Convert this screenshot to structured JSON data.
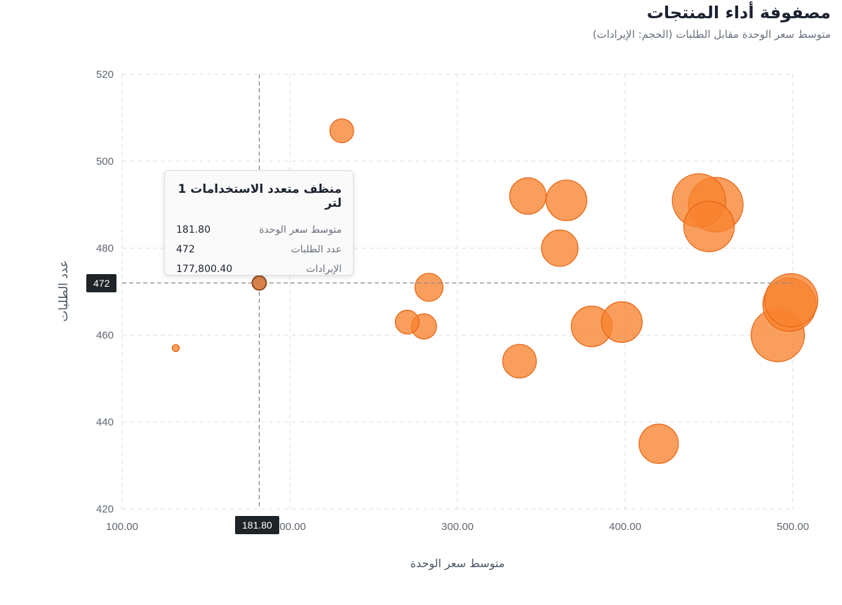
{
  "header": {
    "title": "مصفوفة أداء المنتجات",
    "subtitle": "متوسط سعر الوحدة مقابل الطلبات (الحجم: الإيرادات)"
  },
  "colors": {
    "bubble_fill": "#f7832f",
    "bubble_stroke": "#e8620f",
    "grid": "#e3e3e3",
    "crosshair": "#888888",
    "chip_bg": "#1e2428"
  },
  "chart_data": {
    "type": "scatter",
    "title": "مصفوفة أداء المنتجات",
    "subtitle": "متوسط سعر الوحدة مقابل الطلبات (الحجم: الإيرادات)",
    "xlabel": "متوسط سعر الوحدة",
    "ylabel": "عدد الطلبات",
    "xlim": [
      100,
      500
    ],
    "ylim": [
      420,
      520
    ],
    "xticks": [
      "100.00",
      "200.00",
      "300.00",
      "400.00",
      "500.00"
    ],
    "yticks": [
      "420",
      "440",
      "460",
      "480",
      "500",
      "520"
    ],
    "grid": true,
    "size_encoding": "الإيرادات",
    "points": [
      {
        "x": 132,
        "y": 457,
        "r": 5
      },
      {
        "x": 181.8,
        "y": 472,
        "r": 10
      },
      {
        "x": 231,
        "y": 507,
        "r": 17
      },
      {
        "x": 270,
        "y": 463,
        "r": 17
      },
      {
        "x": 280,
        "y": 462,
        "r": 18
      },
      {
        "x": 283,
        "y": 471,
        "r": 20
      },
      {
        "x": 337,
        "y": 454,
        "r": 24
      },
      {
        "x": 342,
        "y": 492,
        "r": 26
      },
      {
        "x": 361,
        "y": 480,
        "r": 26
      },
      {
        "x": 365,
        "y": 491,
        "r": 29
      },
      {
        "x": 380,
        "y": 462,
        "r": 29
      },
      {
        "x": 398,
        "y": 463,
        "r": 29
      },
      {
        "x": 420,
        "y": 435,
        "r": 28
      },
      {
        "x": 444,
        "y": 491,
        "r": 38
      },
      {
        "x": 450,
        "y": 485,
        "r": 36
      },
      {
        "x": 454,
        "y": 490,
        "r": 39
      },
      {
        "x": 491,
        "y": 460,
        "r": 38
      },
      {
        "x": 498,
        "y": 467,
        "r": 38
      },
      {
        "x": 499,
        "y": 468,
        "r": 38
      }
    ],
    "highlighted": {
      "x": 181.8,
      "y": 472
    }
  },
  "tooltip": {
    "title": "منظف متعدد الاستخدامات 1 لتر",
    "rows": [
      {
        "label": "متوسط سعر الوحدة",
        "value": "181.80"
      },
      {
        "label": "عدد الطلبات",
        "value": "472"
      },
      {
        "label": "الإيرادات",
        "value": "177,800.40"
      }
    ]
  },
  "crosshair": {
    "x_label": "181.80",
    "y_label": "472"
  }
}
